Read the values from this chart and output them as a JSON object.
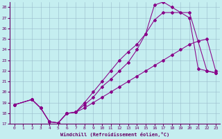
{
  "xlabel": "Windchill (Refroidissement éolien,°C)",
  "xlim": [
    -0.5,
    23.5
  ],
  "ylim": [
    17,
    28.5
  ],
  "xticks": [
    0,
    1,
    2,
    3,
    4,
    5,
    6,
    7,
    8,
    9,
    10,
    11,
    12,
    13,
    14,
    15,
    16,
    17,
    18,
    19,
    20,
    21,
    22,
    23
  ],
  "yticks": [
    17,
    18,
    19,
    20,
    21,
    22,
    23,
    24,
    25,
    26,
    27,
    28
  ],
  "bg_color": "#c5eef0",
  "line_color": "#880088",
  "grid_color": "#99bbcc",
  "curve1_x": [
    0,
    2,
    3,
    4,
    5,
    6,
    7,
    8,
    9,
    10,
    11,
    12,
    13,
    14,
    15,
    16,
    17,
    18,
    20,
    21,
    22,
    23
  ],
  "curve1_y": [
    18.8,
    19.3,
    18.5,
    17.2,
    17.1,
    18.0,
    18.1,
    19.0,
    20.0,
    21.0,
    22.0,
    23.0,
    23.8,
    24.5,
    25.5,
    28.2,
    28.5,
    28.0,
    27.0,
    22.2,
    22.0,
    21.8
  ],
  "curve2_x": [
    0,
    2,
    3,
    4,
    5,
    6,
    7,
    8,
    9,
    10,
    11,
    12,
    13,
    14,
    15,
    16,
    17,
    18,
    19,
    20,
    22,
    23
  ],
  "curve2_y": [
    18.8,
    19.3,
    18.5,
    17.2,
    17.1,
    18.0,
    18.1,
    18.8,
    19.5,
    20.5,
    21.2,
    22.0,
    22.8,
    24.0,
    25.5,
    26.8,
    27.5,
    27.5,
    27.5,
    27.5,
    22.0,
    21.8
  ],
  "curve3_x": [
    0,
    2,
    3,
    4,
    5,
    6,
    7,
    8,
    9,
    10,
    11,
    12,
    13,
    14,
    15,
    16,
    17,
    18,
    19,
    20,
    21,
    22,
    23
  ],
  "curve3_y": [
    18.8,
    19.3,
    18.5,
    17.2,
    17.1,
    18.0,
    18.1,
    18.5,
    19.0,
    19.5,
    20.0,
    20.5,
    21.0,
    21.5,
    22.0,
    22.5,
    23.0,
    23.5,
    24.0,
    24.5,
    24.8,
    25.0,
    22.0
  ]
}
